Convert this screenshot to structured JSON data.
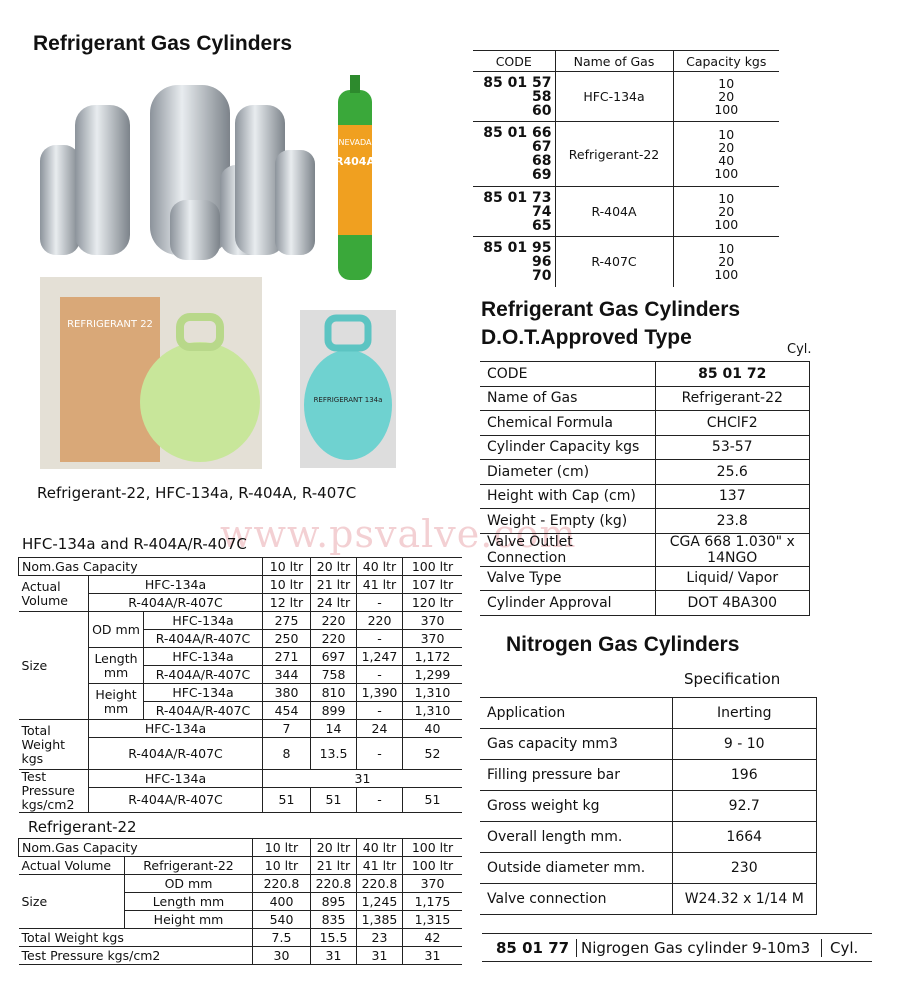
{
  "title": "Refrigerant Gas Cylinders",
  "photo_caption": "Refrigerant-22, HFC-134a, R-404A, R-407C",
  "photo_labels": {
    "r404a": "R404A",
    "nevada": "NEVADA",
    "r22_box": "REFRIGERANT 22",
    "r134a": "REFRIGERANT 134a"
  },
  "watermark": "www.psvalve.com",
  "code_table": {
    "headers": [
      "CODE",
      "Name of Gas",
      "Capacity kgs"
    ],
    "rows": [
      {
        "code": "85 01 57\n58\n60",
        "gas": "HFC-134a",
        "capacity": "10\n20\n100"
      },
      {
        "code": "85 01 66\n67\n68\n69",
        "gas": "Refrigerant-22",
        "capacity": "10\n20\n40\n100"
      },
      {
        "code": "85 01 73\n74\n65",
        "gas": "R-404A",
        "capacity": "10\n20\n100"
      },
      {
        "code": "85 01 95\n96\n70",
        "gas": "R-407C",
        "capacity": "10\n20\n100"
      }
    ]
  },
  "dot": {
    "title1": "Refrigerant Gas Cylinders",
    "title2": "D.O.T.Approved Type",
    "unit": "Cyl.",
    "rows": [
      [
        "CODE",
        "85 01 72"
      ],
      [
        "Name of Gas",
        "Refrigerant-22"
      ],
      [
        "Chemical Formula",
        "CHClF2"
      ],
      [
        "Cylinder Capacity kgs",
        "53-57"
      ],
      [
        "Diameter (cm)",
        "25.6"
      ],
      [
        "Height with Cap (cm)",
        "137"
      ],
      [
        "Weight - Empty (kg)",
        "23.8"
      ],
      [
        "Valve Outlet Connection",
        "CGA 668 1.030\" x 14NGO"
      ],
      [
        "Valve Type",
        "Liquid/ Vapor"
      ],
      [
        "Cylinder Approval",
        "DOT 4BA300"
      ]
    ]
  },
  "nitrogen": {
    "title": "Nitrogen Gas Cylinders",
    "spec_label": "Specification",
    "rows": [
      [
        "Application",
        "Inerting"
      ],
      [
        "Gas capacity mm3",
        "9 - 10"
      ],
      [
        "Filling pressure bar",
        "196"
      ],
      [
        "Gross weight kg",
        "92.7"
      ],
      [
        "Overall length mm.",
        "1664"
      ],
      [
        "Outside diameter mm.",
        "230"
      ],
      [
        "Valve connection",
        "W24.32 x 1/14 M"
      ]
    ],
    "order": {
      "code": "85 01 77",
      "desc": "Nigrogen Gas cylinder 9-10m3",
      "unit": "Cyl."
    }
  },
  "hfc": {
    "title": "HFC-134a and  R-404A/R-407C",
    "nom": "Nom.Gas Capacity",
    "caps": [
      "10 ltr",
      "20 ltr",
      "40 ltr",
      "100 ltr"
    ],
    "actual": "Actual Volume",
    "g1": "HFC-134a",
    "g2": "R-404A/R-407C",
    "av1": [
      "10 ltr",
      "21 ltr",
      "41 ltr",
      "107 ltr"
    ],
    "av2": [
      "12 ltr",
      "24 ltr",
      "-",
      "120 ltr"
    ],
    "size": "Size",
    "od": "OD mm",
    "length": "Length mm",
    "height": "Height mm",
    "od1": [
      "275",
      "220",
      "220",
      "370"
    ],
    "od2": [
      "250",
      "220",
      "-",
      "370"
    ],
    "len1": [
      "271",
      "697",
      "1,247",
      "1,172"
    ],
    "len2": [
      "344",
      "758",
      "-",
      "1,299"
    ],
    "ht1": [
      "380",
      "810",
      "1,390",
      "1,310"
    ],
    "ht2": [
      "454",
      "899",
      "-",
      "1,310"
    ],
    "tw": "Total Weight kgs",
    "tw1": [
      "7",
      "14",
      "24",
      "40"
    ],
    "tw2": [
      "8",
      "13.5",
      "-",
      "52"
    ],
    "tp": "Test Pressure kgs/cm2",
    "tp1": "31",
    "tp2": [
      "51",
      "51",
      "-",
      "51"
    ]
  },
  "r22": {
    "title": "Refrigerant-22",
    "nom": "Nom.Gas Capacity",
    "caps": [
      "10 ltr",
      "20 ltr",
      "40 ltr",
      "100 ltr"
    ],
    "actual": "Actual Volume",
    "gas": "Refrigerant-22",
    "av": [
      "10 ltr",
      "21 ltr",
      "41 ltr",
      "100 ltr"
    ],
    "size": "Size",
    "od": "OD mm",
    "length": "Length mm",
    "height": "Height mm",
    "odv": [
      "220.8",
      "220.8",
      "220.8",
      "370"
    ],
    "lenv": [
      "400",
      "895",
      "1,245",
      "1,175"
    ],
    "htv": [
      "540",
      "835",
      "1,385",
      "1,315"
    ],
    "tw": "Total Weight  kgs",
    "twv": [
      "7.5",
      "15.5",
      "23",
      "42"
    ],
    "tp": "Test  Pressure  kgs/cm2",
    "tpv": [
      "30",
      "31",
      "31",
      "31"
    ]
  }
}
